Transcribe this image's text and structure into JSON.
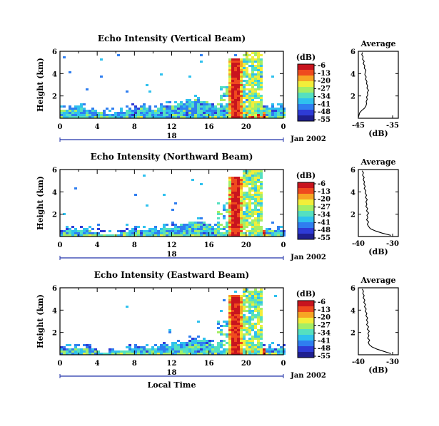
{
  "chart_data": [
    {
      "type": "heatmap",
      "title": "Echo Intensity (Vertical Beam)",
      "ylabel": "Height (km)",
      "xticks": [
        "0",
        "4",
        "8",
        "12",
        "16",
        "20",
        "0"
      ],
      "xlim": [
        0,
        24
      ],
      "ylim": [
        0,
        6
      ],
      "yticks": [
        "2",
        "4",
        "6"
      ],
      "date_label": "18",
      "month_label": "Jan 2002",
      "colorbar": {
        "unit": "(dB)",
        "ticks": [
          "-6",
          "-13",
          "-20",
          "-27",
          "-34",
          "-41",
          "-48",
          "-55"
        ]
      },
      "profile": {
        "title": "Average",
        "xlabel": "(dB)",
        "xticks": [
          "-45",
          "-35"
        ],
        "xlim": [
          -45,
          -35
        ],
        "yticks": [
          "2",
          "4",
          "6"
        ],
        "ylim": [
          0,
          6
        ],
        "points": [
          [
            -45,
            0.1
          ],
          [
            -44.8,
            0.3
          ],
          [
            -44.6,
            0.5
          ],
          [
            -44,
            0.7
          ],
          [
            -43.2,
            0.9
          ],
          [
            -42.8,
            1.1
          ],
          [
            -42.6,
            1.3
          ],
          [
            -42.7,
            1.5
          ],
          [
            -42.4,
            1.7
          ],
          [
            -42.6,
            1.9
          ],
          [
            -42.2,
            2.1
          ],
          [
            -42.4,
            2.3
          ],
          [
            -42,
            2.5
          ],
          [
            -42.5,
            2.7
          ],
          [
            -42.3,
            2.9
          ],
          [
            -42.6,
            3.1
          ],
          [
            -42.5,
            3.3
          ],
          [
            -42.9,
            3.5
          ],
          [
            -42.7,
            3.7
          ],
          [
            -43.1,
            3.9
          ],
          [
            -43,
            4.1
          ],
          [
            -42.8,
            4.3
          ],
          [
            -43.3,
            4.5
          ],
          [
            -43.1,
            4.7
          ],
          [
            -43.6,
            4.9
          ],
          [
            -43.3,
            5.1
          ],
          [
            -43.8,
            5.3
          ],
          [
            -43.6,
            5.5
          ],
          [
            -44,
            5.7
          ],
          [
            -43.8,
            5.9
          ]
        ]
      }
    },
    {
      "type": "heatmap",
      "title": "Echo Intensity (Northward Beam)",
      "ylabel": "Height (km)",
      "xticks": [
        "0",
        "4",
        "8",
        "12",
        "16",
        "20",
        "0"
      ],
      "xlim": [
        0,
        24
      ],
      "ylim": [
        0,
        6
      ],
      "yticks": [
        "2",
        "4",
        "6"
      ],
      "date_label": "18",
      "month_label": "Jan 2002",
      "colorbar": {
        "unit": "(dB)",
        "ticks": [
          "-6",
          "-13",
          "-20",
          "-27",
          "-34",
          "-41",
          "-48",
          "-55"
        ]
      },
      "profile": {
        "title": "Average",
        "xlabel": "(dB)",
        "xticks": [
          "-40",
          "-30"
        ],
        "xlim": [
          -40,
          -30
        ],
        "yticks": [
          "2",
          "4",
          "6"
        ],
        "ylim": [
          0,
          6
        ],
        "points": [
          [
            -30.5,
            0.1
          ],
          [
            -33,
            0.3
          ],
          [
            -35,
            0.5
          ],
          [
            -36.5,
            0.7
          ],
          [
            -37,
            0.9
          ],
          [
            -37.4,
            1.1
          ],
          [
            -37,
            1.3
          ],
          [
            -37.6,
            1.5
          ],
          [
            -37.2,
            1.7
          ],
          [
            -37.5,
            1.9
          ],
          [
            -37,
            2.1
          ],
          [
            -37.6,
            2.3
          ],
          [
            -37.3,
            2.5
          ],
          [
            -37.8,
            2.7
          ],
          [
            -37.5,
            2.9
          ],
          [
            -37.8,
            3.1
          ],
          [
            -37.4,
            3.3
          ],
          [
            -37.9,
            3.5
          ],
          [
            -37.6,
            3.7
          ],
          [
            -38,
            3.9
          ],
          [
            -37.8,
            4.1
          ],
          [
            -38.3,
            4.3
          ],
          [
            -38,
            4.5
          ],
          [
            -38.4,
            4.7
          ],
          [
            -38.2,
            4.9
          ],
          [
            -38.6,
            5.1
          ],
          [
            -38.3,
            5.3
          ],
          [
            -38.8,
            5.5
          ],
          [
            -38.5,
            5.7
          ],
          [
            -38.9,
            5.9
          ]
        ]
      }
    },
    {
      "type": "heatmap",
      "title": "Echo Intensity (Eastward Beam)",
      "ylabel": "Height (km)",
      "xlabel": "Local Time",
      "xticks": [
        "0",
        "4",
        "8",
        "12",
        "16",
        "20",
        "0"
      ],
      "xlim": [
        0,
        24
      ],
      "ylim": [
        0,
        6
      ],
      "yticks": [
        "2",
        "4",
        "6"
      ],
      "date_label": "18",
      "month_label": "Jan 2002",
      "colorbar": {
        "unit": "(dB)",
        "ticks": [
          "-6",
          "-13",
          "-20",
          "-27",
          "-34",
          "-41",
          "-48",
          "-55"
        ]
      },
      "profile": {
        "title": "Average",
        "xlabel": "(dB)",
        "xticks": [
          "-40",
          "-30"
        ],
        "xlim": [
          -40,
          -30
        ],
        "yticks": [
          "2",
          "4",
          "6"
        ],
        "ylim": [
          0,
          6
        ],
        "points": [
          [
            -30.5,
            0.1
          ],
          [
            -32.5,
            0.3
          ],
          [
            -34.5,
            0.5
          ],
          [
            -36,
            0.7
          ],
          [
            -36.8,
            0.9
          ],
          [
            -37.1,
            1.1
          ],
          [
            -36.7,
            1.3
          ],
          [
            -37.3,
            1.5
          ],
          [
            -36.9,
            1.7
          ],
          [
            -37.2,
            1.9
          ],
          [
            -36.8,
            2.1
          ],
          [
            -37.4,
            2.3
          ],
          [
            -37,
            2.5
          ],
          [
            -37.6,
            2.7
          ],
          [
            -37.2,
            2.9
          ],
          [
            -37.6,
            3.1
          ],
          [
            -37.3,
            3.3
          ],
          [
            -37.8,
            3.5
          ],
          [
            -37.5,
            3.7
          ],
          [
            -38,
            3.9
          ],
          [
            -37.7,
            4.1
          ],
          [
            -38.2,
            4.3
          ],
          [
            -37.9,
            4.5
          ],
          [
            -38.4,
            4.7
          ],
          [
            -38.1,
            4.9
          ],
          [
            -38.6,
            5.1
          ],
          [
            -38.3,
            5.3
          ],
          [
            -38.7,
            5.5
          ],
          [
            -38.5,
            5.7
          ],
          [
            -38.9,
            5.9
          ]
        ]
      }
    }
  ]
}
